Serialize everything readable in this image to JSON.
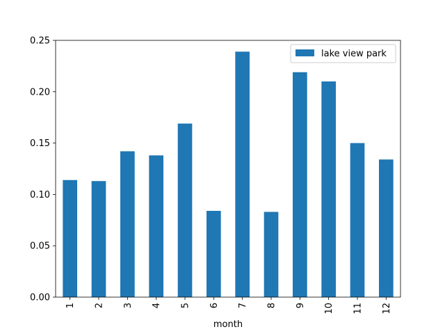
{
  "colors": {
    "bar": "#1f77b4",
    "axis": "#000000",
    "legend_border": "#cccccc",
    "background": "#ffffff"
  },
  "chart_data": {
    "type": "bar",
    "title": "",
    "xlabel": "month",
    "ylabel": "",
    "categories": [
      "1",
      "2",
      "3",
      "4",
      "5",
      "6",
      "7",
      "8",
      "9",
      "10",
      "11",
      "12"
    ],
    "series": [
      {
        "name": "lake view park",
        "values": [
          0.114,
          0.113,
          0.142,
          0.138,
          0.169,
          0.084,
          0.239,
          0.083,
          0.219,
          0.21,
          0.15,
          0.134
        ]
      }
    ],
    "ylim": [
      0,
      0.25
    ],
    "yticks": [
      "0.00",
      "0.05",
      "0.10",
      "0.15",
      "0.20",
      "0.25"
    ],
    "xtick_rotation": "vertical",
    "grid": false,
    "legend_position": "upper right"
  }
}
